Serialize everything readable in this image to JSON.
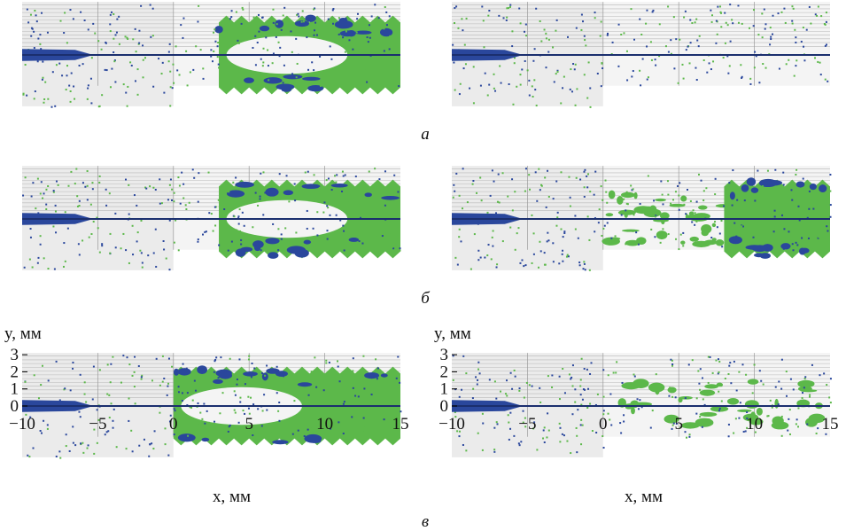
{
  "figure": {
    "row_labels": [
      "а",
      "б",
      "в"
    ],
    "ylabel": "y, мм",
    "xlabel": "x, мм",
    "xlim": [
      -10,
      15
    ],
    "ylim": [
      -3,
      3.1
    ],
    "xticks": [
      {
        "value": -10,
        "label": "−10"
      },
      {
        "value": -5,
        "label": "−5"
      },
      0,
      5,
      10,
      15
    ],
    "yticks": [
      0,
      1,
      2,
      3
    ]
  }
}
